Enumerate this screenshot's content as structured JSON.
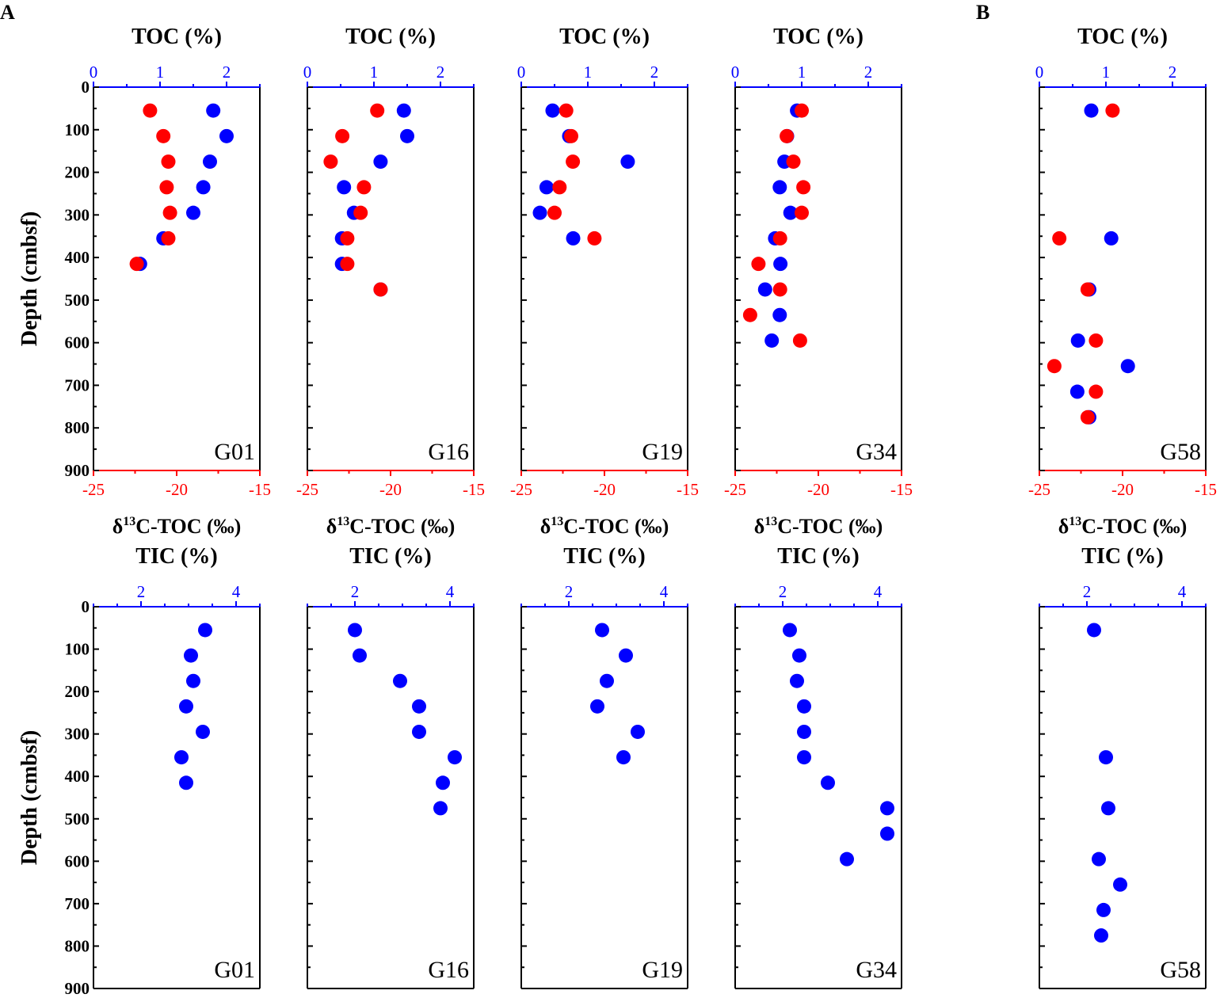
{
  "panel_labels": [
    "A",
    "B"
  ],
  "colors": {
    "toc": "#0000ff",
    "d13c": "#ff0000",
    "tic": "#0000ff",
    "axis": "#000000"
  },
  "chart_data": [
    {
      "type": "scatter",
      "site": "G01",
      "row": "top",
      "title": "TOC (%)",
      "xlabel": "δ13C-TOC (‰)",
      "ylabel": "Depth (cmbsf)",
      "top_ticks": [
        "0",
        "1",
        "2"
      ],
      "bottom_ticks": [
        "-25",
        "-20",
        "-15"
      ],
      "y_ticks": [
        "0",
        "100",
        "200",
        "300",
        "400",
        "500",
        "600",
        "700",
        "800",
        "900"
      ],
      "xlim_top": [
        0,
        2.5
      ],
      "xlim_bottom": [
        -25,
        -15
      ],
      "ylim": [
        0,
        900
      ],
      "series": [
        {
          "name": "TOC",
          "axis": "top",
          "color": "#0000ff",
          "points": [
            [
              1.8,
              55
            ],
            [
              2.0,
              115
            ],
            [
              1.75,
              175
            ],
            [
              1.65,
              235
            ],
            [
              1.5,
              295
            ],
            [
              1.05,
              355
            ],
            [
              0.7,
              415
            ]
          ]
        },
        {
          "name": "δ13C-TOC",
          "axis": "bottom",
          "color": "#ff0000",
          "points": [
            [
              -21.6,
              55
            ],
            [
              -20.8,
              115
            ],
            [
              -20.5,
              175
            ],
            [
              -20.6,
              235
            ],
            [
              -20.4,
              295
            ],
            [
              -20.5,
              355
            ],
            [
              -22.4,
              415
            ]
          ]
        }
      ]
    },
    {
      "type": "scatter",
      "site": "G16",
      "row": "top",
      "title": "TOC (%)",
      "xlabel": "δ13C-TOC (‰)",
      "top_ticks": [
        "0",
        "1",
        "2"
      ],
      "bottom_ticks": [
        "-25",
        "-20",
        "-15"
      ],
      "xlim_top": [
        0,
        2.5
      ],
      "xlim_bottom": [
        -25,
        -15
      ],
      "ylim": [
        0,
        900
      ],
      "series": [
        {
          "name": "TOC",
          "axis": "top",
          "color": "#0000ff",
          "points": [
            [
              1.45,
              55
            ],
            [
              1.5,
              115
            ],
            [
              1.1,
              175
            ],
            [
              0.55,
              235
            ],
            [
              0.7,
              295
            ],
            [
              0.52,
              355
            ],
            [
              0.52,
              415
            ],
            [
              1.1,
              475
            ]
          ]
        },
        {
          "name": "δ13C-TOC",
          "axis": "bottom",
          "color": "#ff0000",
          "points": [
            [
              -20.8,
              55
            ],
            [
              -22.9,
              115
            ],
            [
              -23.6,
              175
            ],
            [
              -21.6,
              235
            ],
            [
              -21.8,
              295
            ],
            [
              -22.6,
              355
            ],
            [
              -22.6,
              415
            ],
            [
              -20.6,
              475
            ]
          ]
        }
      ]
    },
    {
      "type": "scatter",
      "site": "G19",
      "row": "top",
      "title": "TOC (%)",
      "xlabel": "δ13C-TOC (‰)",
      "top_ticks": [
        "0",
        "1",
        "2"
      ],
      "bottom_ticks": [
        "-25",
        "-20",
        "-15"
      ],
      "xlim_top": [
        0,
        2.5
      ],
      "xlim_bottom": [
        -25,
        -15
      ],
      "ylim": [
        0,
        900
      ],
      "series": [
        {
          "name": "TOC",
          "axis": "top",
          "color": "#0000ff",
          "points": [
            [
              0.47,
              55
            ],
            [
              0.72,
              115
            ],
            [
              1.6,
              175
            ],
            [
              0.38,
              235
            ],
            [
              0.28,
              295
            ],
            [
              0.78,
              355
            ]
          ]
        },
        {
          "name": "δ13C-TOC",
          "axis": "bottom",
          "color": "#ff0000",
          "points": [
            [
              -22.3,
              55
            ],
            [
              -22.0,
              115
            ],
            [
              -21.9,
              175
            ],
            [
              -22.7,
              235
            ],
            [
              -23.0,
              295
            ],
            [
              -20.6,
              355
            ]
          ]
        }
      ]
    },
    {
      "type": "scatter",
      "site": "G34",
      "row": "top",
      "title": "TOC (%)",
      "xlabel": "δ13C-TOC (‰)",
      "top_ticks": [
        "0",
        "1",
        "2"
      ],
      "bottom_ticks": [
        "-25",
        "-20",
        "-15"
      ],
      "xlim_top": [
        0,
        2.5
      ],
      "xlim_bottom": [
        -25,
        -15
      ],
      "ylim": [
        0,
        900
      ],
      "series": [
        {
          "name": "TOC",
          "axis": "top",
          "color": "#0000ff",
          "points": [
            [
              0.93,
              55
            ],
            [
              0.78,
              115
            ],
            [
              0.74,
              175
            ],
            [
              0.67,
              235
            ],
            [
              0.83,
              295
            ],
            [
              0.6,
              355
            ],
            [
              0.68,
              415
            ],
            [
              0.45,
              475
            ],
            [
              0.67,
              535
            ],
            [
              0.55,
              595
            ]
          ]
        },
        {
          "name": "δ13C-TOC",
          "axis": "bottom",
          "color": "#ff0000",
          "points": [
            [
              -21.0,
              55
            ],
            [
              -21.9,
              115
            ],
            [
              -21.5,
              175
            ],
            [
              -20.9,
              235
            ],
            [
              -21.0,
              295
            ],
            [
              -22.3,
              355
            ],
            [
              -23.6,
              415
            ],
            [
              -22.3,
              475
            ],
            [
              -24.1,
              535
            ],
            [
              -21.1,
              595
            ]
          ]
        }
      ]
    },
    {
      "type": "scatter",
      "site": "G58",
      "row": "top",
      "title": "TOC (%)",
      "xlabel": "δ13C-TOC (‰)",
      "top_ticks": [
        "0",
        "1",
        "2"
      ],
      "bottom_ticks": [
        "-25",
        "-20",
        "-15"
      ],
      "xlim_top": [
        0,
        2.5
      ],
      "xlim_bottom": [
        -25,
        -15
      ],
      "ylim": [
        0,
        900
      ],
      "series": [
        {
          "name": "TOC",
          "axis": "top",
          "color": "#0000ff",
          "points": [
            [
              0.78,
              55
            ],
            [
              1.08,
              355
            ],
            [
              0.75,
              475
            ],
            [
              0.58,
              595
            ],
            [
              1.33,
              655
            ],
            [
              0.57,
              715
            ],
            [
              0.75,
              775
            ]
          ]
        },
        {
          "name": "δ13C-TOC",
          "axis": "bottom",
          "color": "#ff0000",
          "points": [
            [
              -20.6,
              55
            ],
            [
              -23.8,
              355
            ],
            [
              -22.1,
              475
            ],
            [
              -21.6,
              595
            ],
            [
              -24.1,
              655
            ],
            [
              -21.6,
              715
            ],
            [
              -22.1,
              775
            ]
          ]
        }
      ]
    },
    {
      "type": "scatter",
      "site": "G01",
      "row": "bottom",
      "title": "TIC (%)",
      "ylabel": "Depth (cmbsf)",
      "top_ticks": [
        "2",
        "4"
      ],
      "y_ticks": [
        "0",
        "100",
        "200",
        "300",
        "400",
        "500",
        "600",
        "700",
        "800",
        "900"
      ],
      "xlim_top": [
        1,
        4.5
      ],
      "ylim": [
        0,
        900
      ],
      "series": [
        {
          "name": "TIC",
          "axis": "top",
          "color": "#0000ff",
          "points": [
            [
              3.35,
              55
            ],
            [
              3.05,
              115
            ],
            [
              3.1,
              175
            ],
            [
              2.95,
              235
            ],
            [
              3.3,
              295
            ],
            [
              2.85,
              355
            ],
            [
              2.95,
              415
            ]
          ]
        }
      ]
    },
    {
      "type": "scatter",
      "site": "G16",
      "row": "bottom",
      "title": "TIC (%)",
      "top_ticks": [
        "2",
        "4"
      ],
      "xlim_top": [
        1,
        4.5
      ],
      "ylim": [
        0,
        900
      ],
      "series": [
        {
          "name": "TIC",
          "axis": "top",
          "color": "#0000ff",
          "points": [
            [
              2.0,
              55
            ],
            [
              2.1,
              115
            ],
            [
              2.95,
              175
            ],
            [
              3.35,
              235
            ],
            [
              3.35,
              295
            ],
            [
              4.1,
              355
            ],
            [
              3.85,
              415
            ],
            [
              3.8,
              475
            ]
          ]
        }
      ]
    },
    {
      "type": "scatter",
      "site": "G19",
      "row": "bottom",
      "title": "TIC (%)",
      "top_ticks": [
        "2",
        "4"
      ],
      "xlim_top": [
        1,
        4.5
      ],
      "ylim": [
        0,
        900
      ],
      "series": [
        {
          "name": "TIC",
          "axis": "top",
          "color": "#0000ff",
          "points": [
            [
              2.7,
              55
            ],
            [
              3.2,
              115
            ],
            [
              2.8,
              175
            ],
            [
              2.6,
              235
            ],
            [
              3.45,
              295
            ],
            [
              3.15,
              355
            ]
          ]
        }
      ]
    },
    {
      "type": "scatter",
      "site": "G34",
      "row": "bottom",
      "title": "TIC (%)",
      "top_ticks": [
        "2",
        "4"
      ],
      "xlim_top": [
        1,
        4.5
      ],
      "ylim": [
        0,
        900
      ],
      "series": [
        {
          "name": "TIC",
          "axis": "top",
          "color": "#0000ff",
          "points": [
            [
              2.15,
              55
            ],
            [
              2.35,
              115
            ],
            [
              2.3,
              175
            ],
            [
              2.45,
              235
            ],
            [
              2.45,
              295
            ],
            [
              2.45,
              355
            ],
            [
              2.95,
              415
            ],
            [
              4.2,
              475
            ],
            [
              4.2,
              535
            ],
            [
              3.35,
              595
            ]
          ]
        }
      ]
    },
    {
      "type": "scatter",
      "site": "G58",
      "row": "bottom",
      "title": "TIC (%)",
      "top_ticks": [
        "2",
        "4"
      ],
      "xlim_top": [
        1,
        4.5
      ],
      "ylim": [
        0,
        900
      ],
      "series": [
        {
          "name": "TIC",
          "axis": "top",
          "color": "#0000ff",
          "points": [
            [
              2.15,
              55
            ],
            [
              2.4,
              355
            ],
            [
              2.45,
              475
            ],
            [
              2.25,
              595
            ],
            [
              2.7,
              655
            ],
            [
              2.35,
              715
            ],
            [
              2.3,
              775
            ]
          ]
        }
      ]
    }
  ]
}
